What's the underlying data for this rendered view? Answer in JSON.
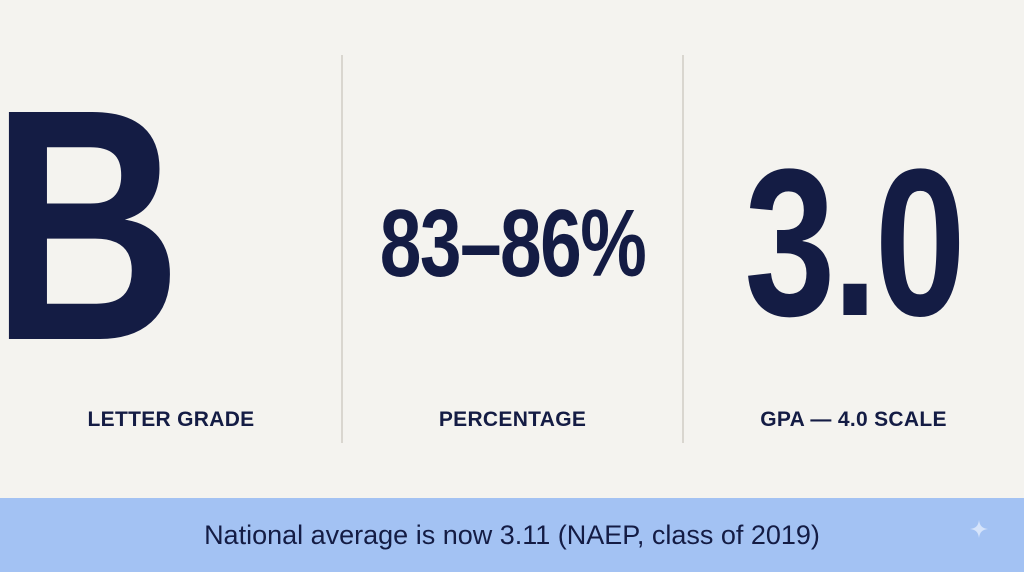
{
  "stats": [
    {
      "value": "B",
      "label": "LETTER GRADE"
    },
    {
      "value": "83–86%",
      "label": "PERCENTAGE"
    },
    {
      "value": "3.0",
      "label": "GPA — 4.0 SCALE"
    }
  ],
  "banner": {
    "text": "National average is now 3.11 (NAEP, class of 2019)"
  },
  "icons": {
    "sparkle": "sparkle-icon"
  },
  "colors": {
    "ink": "#141c44",
    "background": "#f4f3ef",
    "banner": "#a3c2f3",
    "divider": "#d9d6cf"
  }
}
